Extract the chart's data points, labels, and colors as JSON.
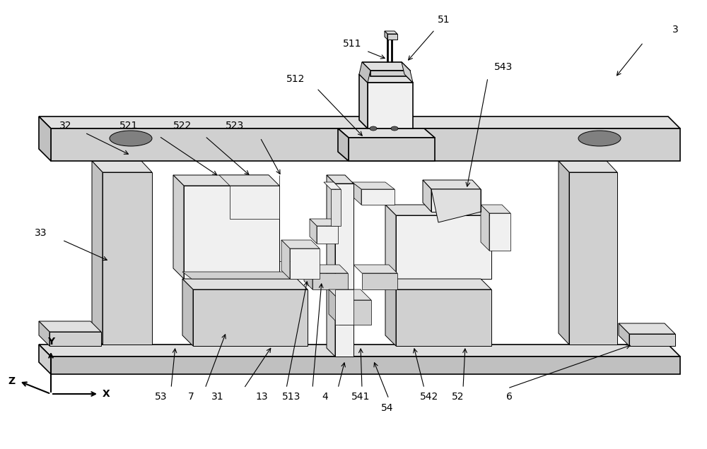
{
  "bg_color": "#ffffff",
  "lc": "#000000",
  "gray1": "#f0f0f0",
  "gray2": "#e0e0e0",
  "gray3": "#d0d0d0",
  "gray4": "#c0c0c0",
  "gray5": "#b0b0b0",
  "labels_config": [
    [
      "3",
      955,
      42,
      910,
      60,
      870,
      110
    ],
    [
      "32",
      93,
      178,
      120,
      188,
      185,
      220
    ],
    [
      "33",
      58,
      330,
      88,
      340,
      155,
      370
    ],
    [
      "51",
      628,
      28,
      615,
      42,
      575,
      88
    ],
    [
      "511",
      498,
      62,
      518,
      72,
      548,
      84
    ],
    [
      "512",
      418,
      112,
      448,
      125,
      515,
      195
    ],
    [
      "521",
      182,
      178,
      225,
      193,
      310,
      250
    ],
    [
      "522",
      258,
      178,
      290,
      193,
      355,
      250
    ],
    [
      "523",
      332,
      178,
      368,
      195,
      398,
      250
    ],
    [
      "543",
      712,
      95,
      690,
      110,
      660,
      268
    ],
    [
      "53",
      228,
      562,
      242,
      550,
      248,
      490
    ],
    [
      "7",
      270,
      562,
      290,
      550,
      320,
      470
    ],
    [
      "31",
      308,
      562,
      345,
      550,
      385,
      490
    ],
    [
      "13",
      370,
      562,
      405,
      550,
      435,
      395
    ],
    [
      "513",
      412,
      562,
      442,
      550,
      455,
      398
    ],
    [
      "4",
      460,
      562,
      478,
      550,
      488,
      510
    ],
    [
      "541",
      510,
      562,
      512,
      550,
      510,
      490
    ],
    [
      "54",
      548,
      578,
      550,
      565,
      528,
      510
    ],
    [
      "542",
      607,
      562,
      600,
      550,
      585,
      490
    ],
    [
      "52",
      648,
      562,
      655,
      550,
      658,
      490
    ],
    [
      "6",
      720,
      562,
      718,
      550,
      895,
      488
    ]
  ]
}
